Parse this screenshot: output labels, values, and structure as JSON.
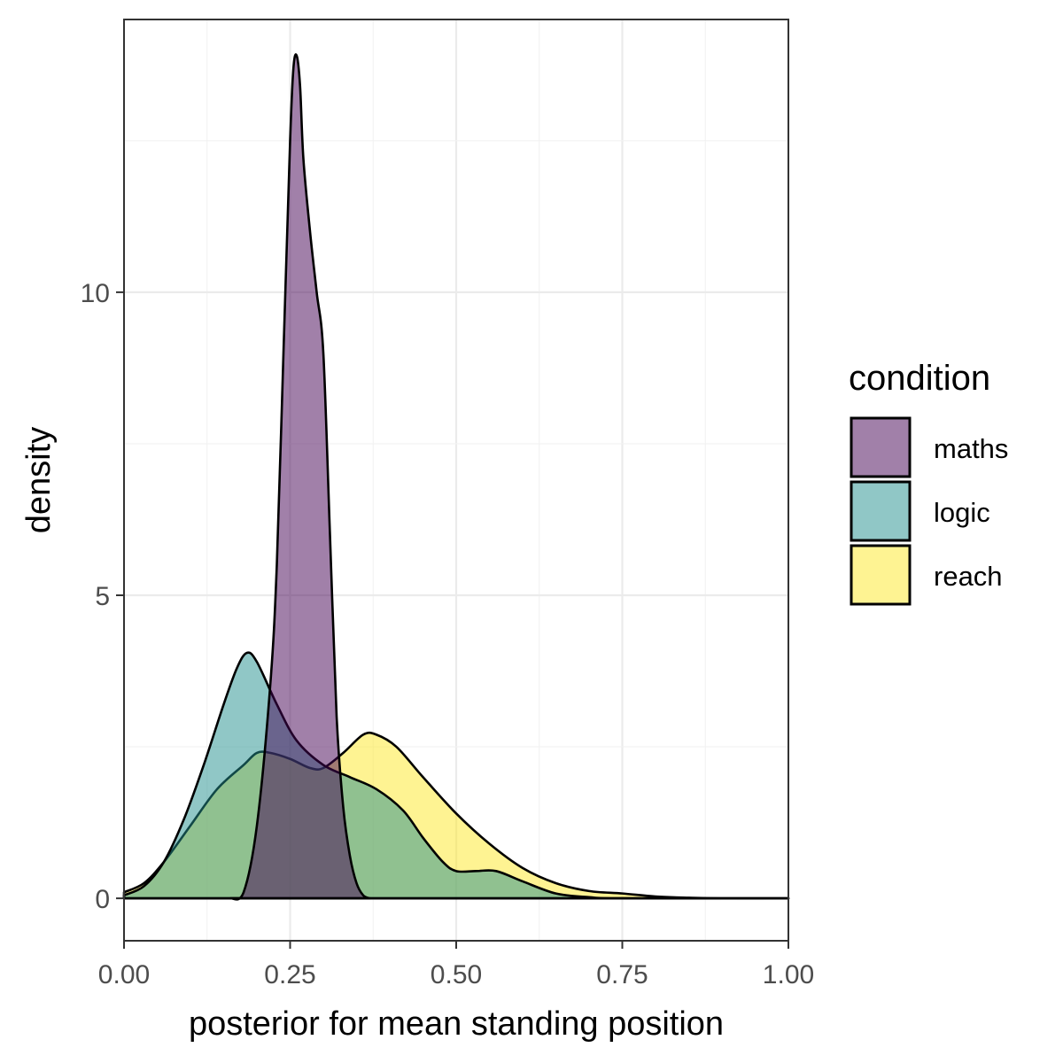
{
  "chart_data": {
    "type": "area",
    "xlabel": "posterior for mean standing position",
    "ylabel": "density",
    "xlim": [
      0,
      1
    ],
    "ylim": [
      -0.7,
      14.5
    ],
    "x_ticks": [
      0,
      0.25,
      0.5,
      0.75,
      1
    ],
    "x_tick_labels": [
      "0.00",
      "0.25",
      "0.50",
      "0.75",
      "1.00"
    ],
    "y_ticks": [
      0,
      5,
      10
    ],
    "y_tick_labels": [
      "0",
      "5",
      "10"
    ],
    "grid": true,
    "legend": {
      "title": "condition",
      "position": "right",
      "entries": [
        "maths",
        "logic",
        "reach"
      ]
    },
    "series": [
      {
        "name": "reach",
        "color": "#fde725",
        "points": [
          [
            0,
            0.1
          ],
          [
            0.03,
            0.25
          ],
          [
            0.06,
            0.6
          ],
          [
            0.1,
            1.2
          ],
          [
            0.14,
            1.8
          ],
          [
            0.18,
            2.2
          ],
          [
            0.2,
            2.4
          ],
          [
            0.22,
            2.4
          ],
          [
            0.25,
            2.3
          ],
          [
            0.28,
            2.15
          ],
          [
            0.3,
            2.15
          ],
          [
            0.33,
            2.4
          ],
          [
            0.36,
            2.7
          ],
          [
            0.38,
            2.7
          ],
          [
            0.41,
            2.5
          ],
          [
            0.45,
            2.0
          ],
          [
            0.5,
            1.4
          ],
          [
            0.55,
            0.9
          ],
          [
            0.6,
            0.5
          ],
          [
            0.65,
            0.25
          ],
          [
            0.7,
            0.12
          ],
          [
            0.75,
            0.08
          ],
          [
            0.8,
            0.03
          ],
          [
            0.85,
            0.01
          ],
          [
            0.9,
            0.0
          ],
          [
            1.0,
            0.0
          ]
        ]
      },
      {
        "name": "logic",
        "color": "#21908d",
        "points": [
          [
            0,
            0.05
          ],
          [
            0.03,
            0.2
          ],
          [
            0.06,
            0.6
          ],
          [
            0.09,
            1.3
          ],
          [
            0.12,
            2.2
          ],
          [
            0.15,
            3.2
          ],
          [
            0.17,
            3.8
          ],
          [
            0.185,
            4.05
          ],
          [
            0.2,
            3.9
          ],
          [
            0.23,
            3.2
          ],
          [
            0.26,
            2.6
          ],
          [
            0.3,
            2.2
          ],
          [
            0.34,
            2.0
          ],
          [
            0.38,
            1.8
          ],
          [
            0.42,
            1.45
          ],
          [
            0.45,
            1.0
          ],
          [
            0.48,
            0.6
          ],
          [
            0.5,
            0.45
          ],
          [
            0.53,
            0.45
          ],
          [
            0.56,
            0.45
          ],
          [
            0.6,
            0.28
          ],
          [
            0.65,
            0.08
          ],
          [
            0.7,
            0.02
          ],
          [
            0.75,
            0.0
          ],
          [
            1.0,
            0.0
          ]
        ]
      },
      {
        "name": "maths",
        "color": "#440154",
        "points": [
          [
            0.16,
            0.0
          ],
          [
            0.18,
            0.1
          ],
          [
            0.2,
            1.2
          ],
          [
            0.22,
            3.5
          ],
          [
            0.23,
            5.5
          ],
          [
            0.24,
            9.0
          ],
          [
            0.25,
            12.5
          ],
          [
            0.255,
            13.7
          ],
          [
            0.26,
            13.9
          ],
          [
            0.265,
            13.4
          ],
          [
            0.27,
            12.2
          ],
          [
            0.28,
            11.0
          ],
          [
            0.29,
            10.0
          ],
          [
            0.3,
            9.0
          ],
          [
            0.31,
            6.0
          ],
          [
            0.32,
            3.0
          ],
          [
            0.33,
            1.5
          ],
          [
            0.34,
            0.7
          ],
          [
            0.35,
            0.25
          ],
          [
            0.36,
            0.05
          ],
          [
            0.37,
            0.0
          ]
        ]
      }
    ]
  }
}
